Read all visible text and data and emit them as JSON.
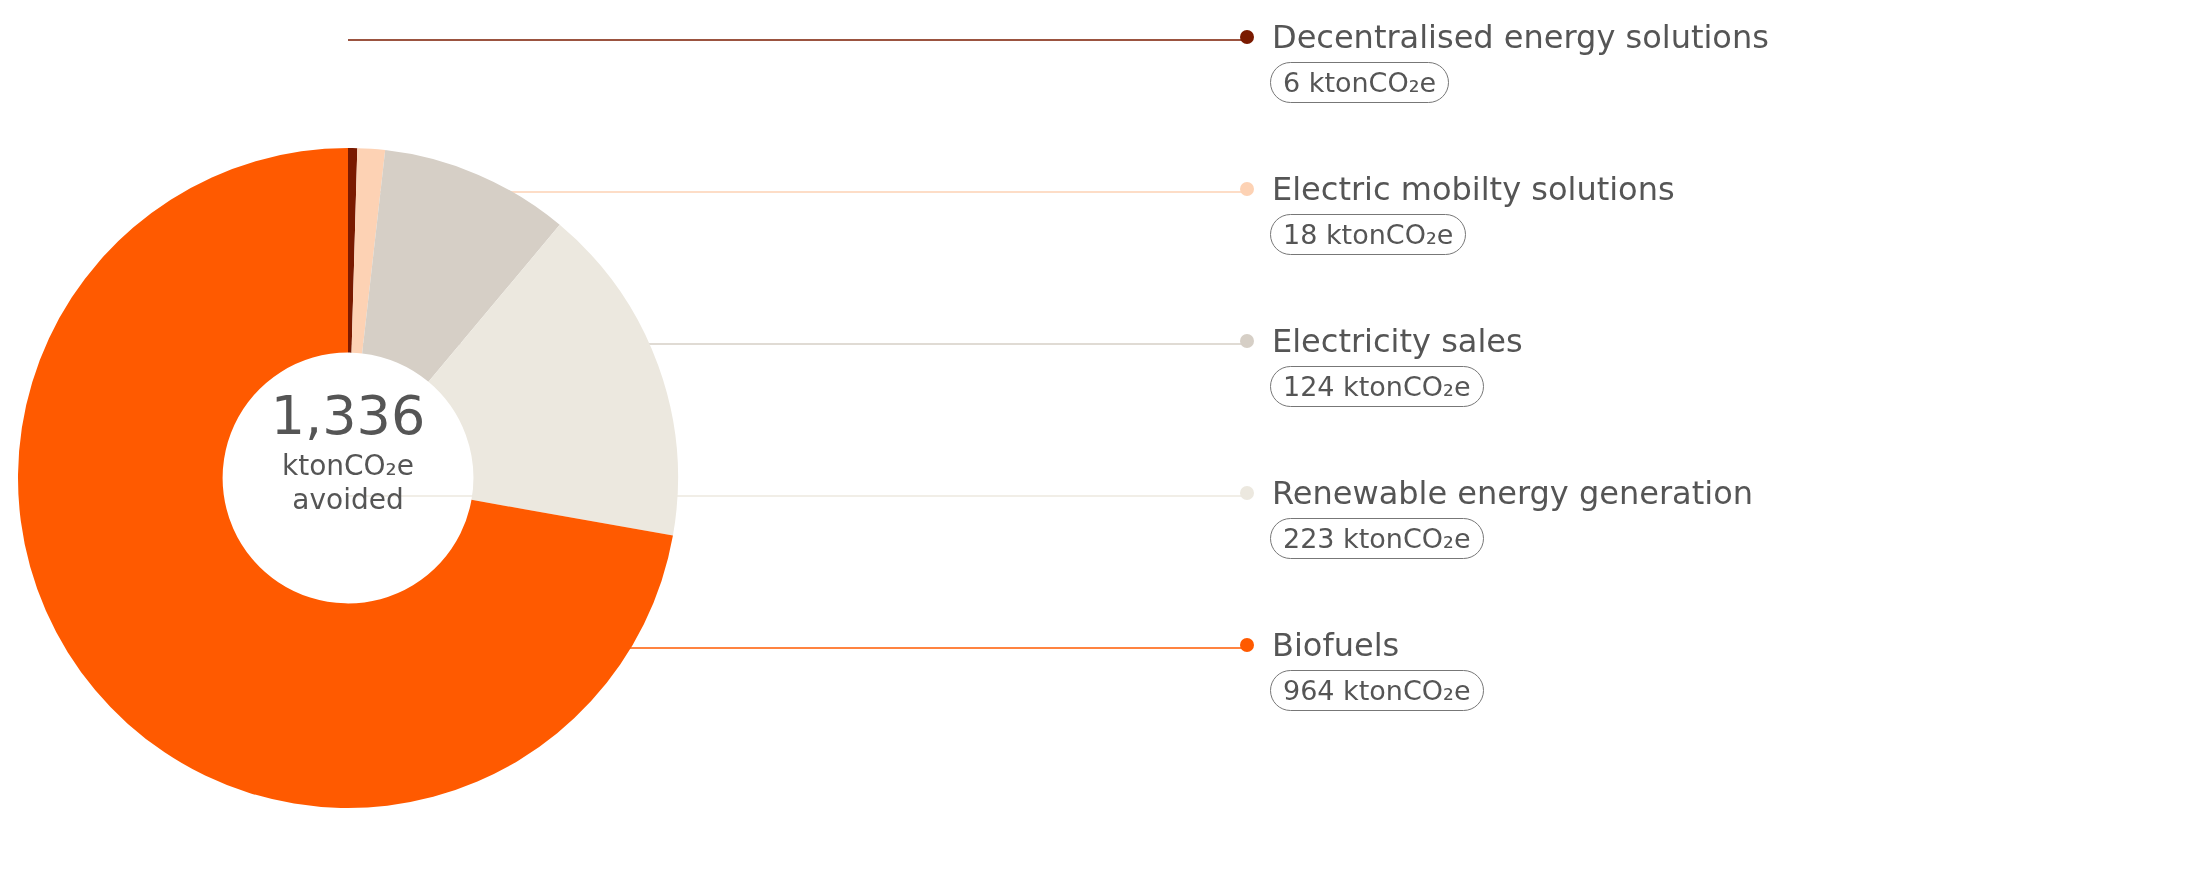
{
  "chart_data": {
    "type": "donut",
    "categories": [
      "Decentralised energy solutions",
      "Electric mobilty solutions",
      "Electricity sales",
      "Renewable energy generation",
      "Biofuels"
    ],
    "values": [
      6,
      18,
      124,
      223,
      964
    ],
    "colors": [
      "#7a1a00",
      "#fdd2b4",
      "#d6cfc6",
      "#ece8df",
      "#ff5a00"
    ],
    "value_labels": [
      "6 ktonCO₂e",
      "18 ktonCO₂e",
      "124 ktonCO₂e",
      "223 ktonCO₂e",
      "964 ktonCO₂e"
    ],
    "annotations": [
      "1,336",
      "ktonCO₂e avoided"
    ],
    "legend": "right"
  }
}
